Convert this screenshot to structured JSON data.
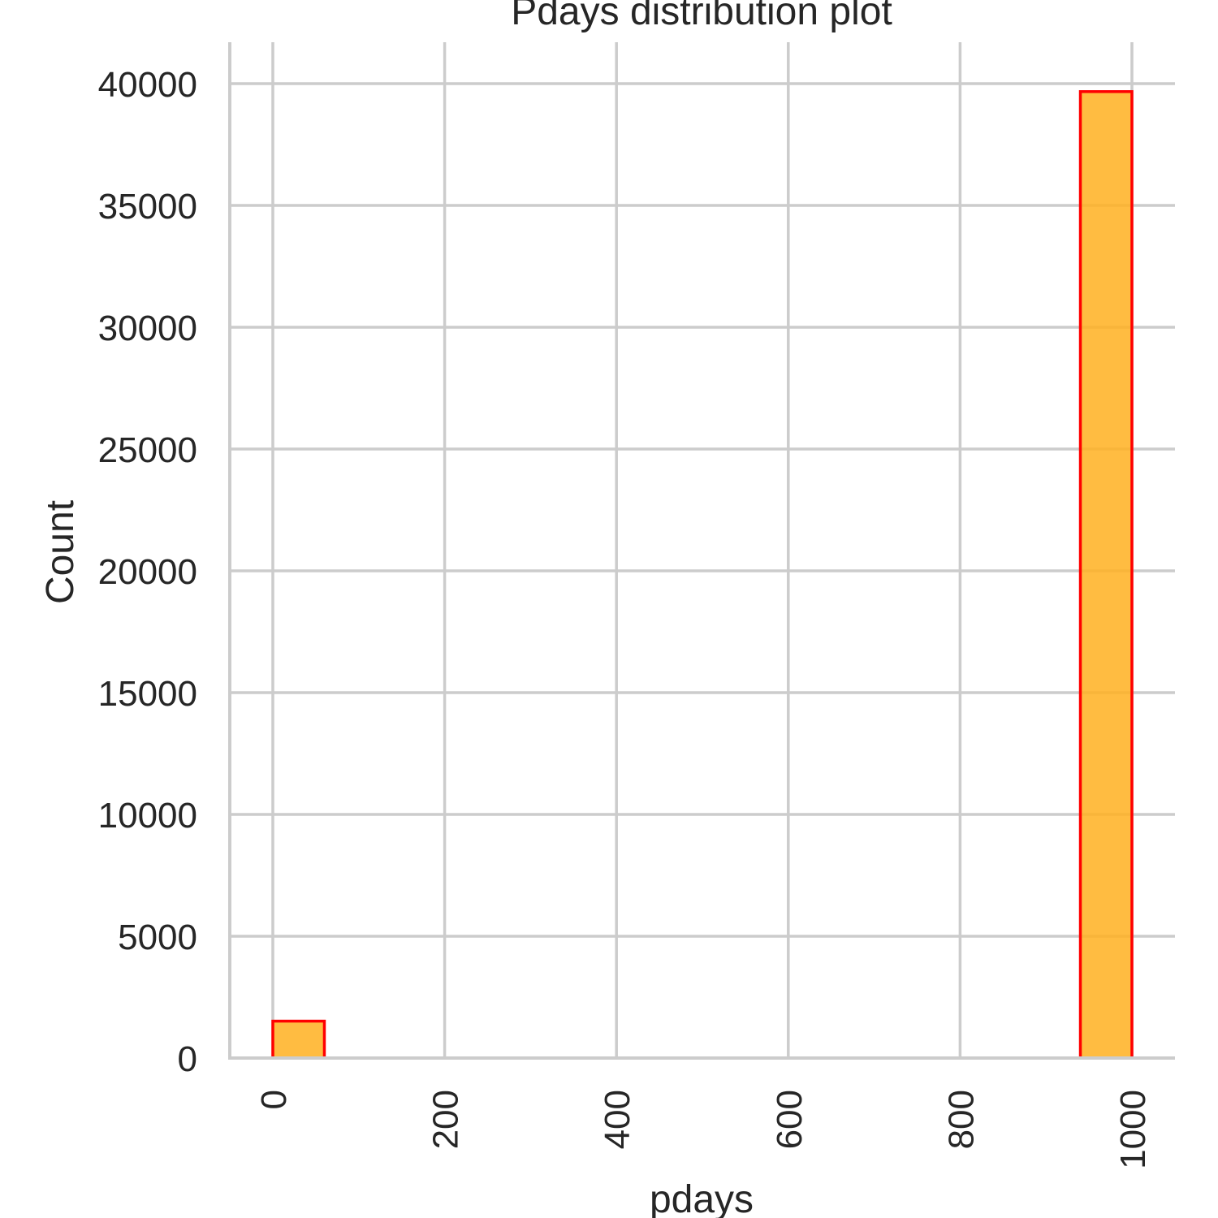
{
  "chart_data": {
    "type": "bar",
    "title": "Pdays distribution plot",
    "xlabel": "pdays",
    "ylabel": "Count",
    "bins": [
      {
        "x0": 0,
        "x1": 60,
        "count": 1515
      },
      {
        "x0": 940,
        "x1": 1000,
        "count": 39673
      }
    ],
    "x_ticks": [
      0,
      200,
      400,
      600,
      800,
      1000
    ],
    "x_tick_labels": [
      "0",
      "200",
      "400",
      "600",
      "800",
      "1000"
    ],
    "y_ticks": [
      0,
      5000,
      10000,
      15000,
      20000,
      25000,
      30000,
      35000,
      40000
    ],
    "y_tick_labels": [
      "0",
      "5000",
      "10000",
      "15000",
      "20000",
      "25000",
      "30000",
      "35000",
      "40000"
    ],
    "xlim": [
      -10,
      1000
    ],
    "ylim": [
      0,
      41700
    ],
    "grid": true,
    "colors": {
      "fill": "#FFB020",
      "edge": "#FF0000",
      "grid": "#CCCCCC",
      "text": "#262626"
    }
  }
}
